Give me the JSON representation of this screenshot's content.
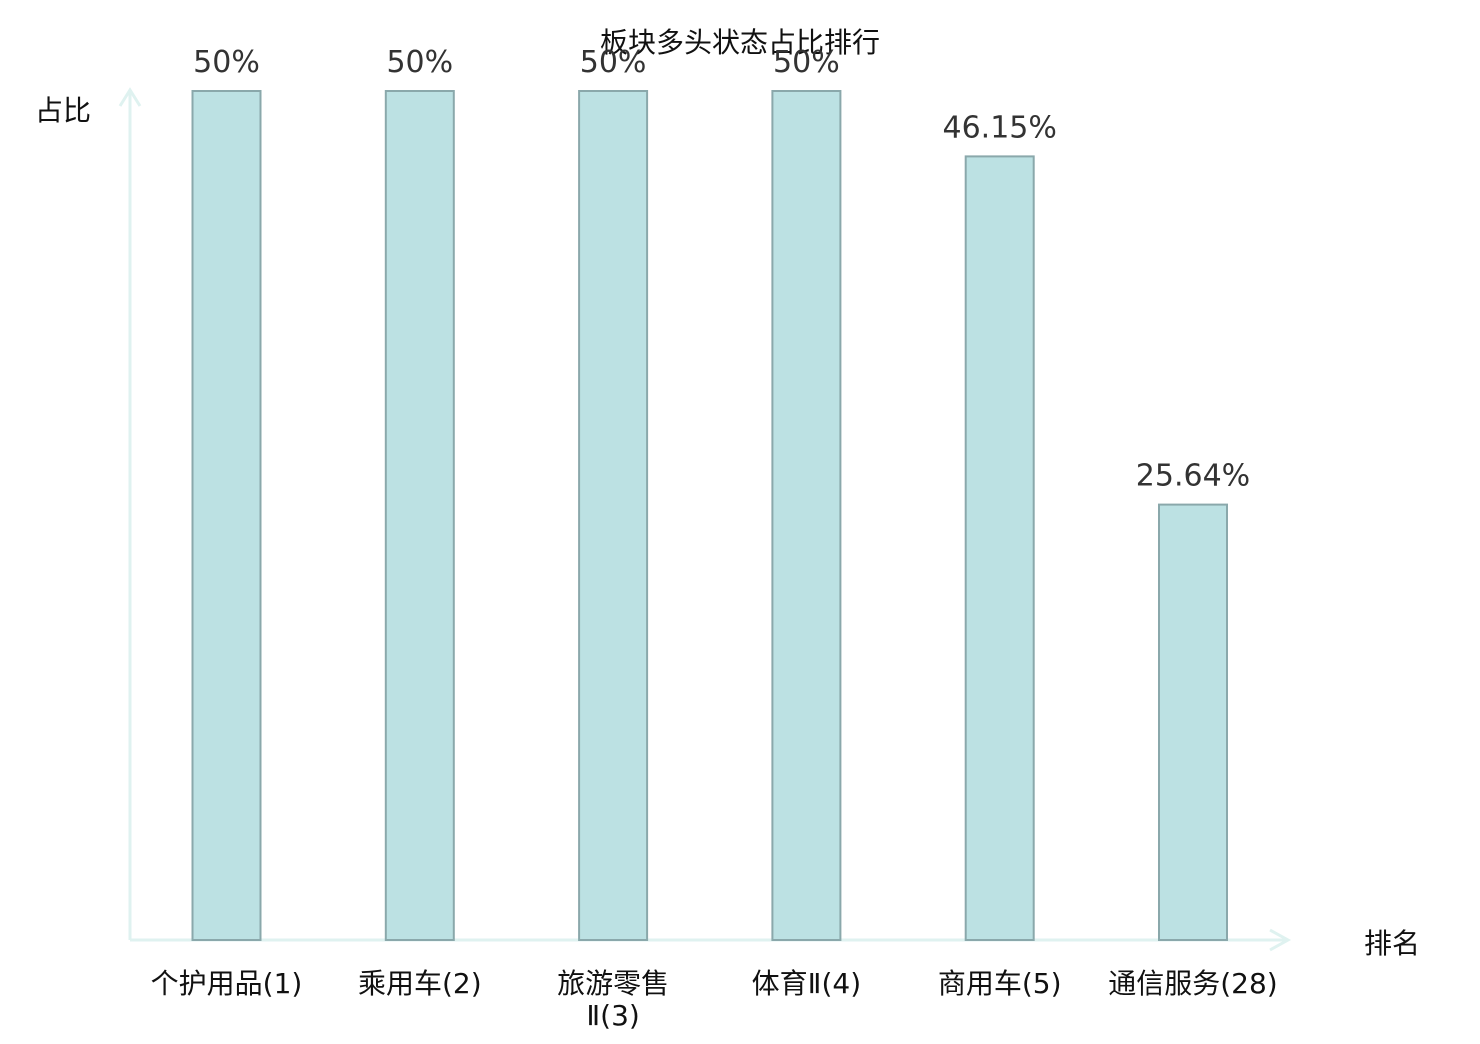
{
  "chart_data": {
    "type": "bar",
    "title": "板块多头状态占比排行",
    "xlabel": "排名",
    "ylabel": "占比",
    "categories": [
      "个护用品(1)",
      "乘用车(2)",
      "旅游零售Ⅱ(3)",
      "体育Ⅱ(4)",
      "商用车(5)",
      "通信服务(28)"
    ],
    "category_lines": [
      [
        "个护用品(1)"
      ],
      [
        "乘用车(2)"
      ],
      [
        "旅游零售",
        "Ⅱ(3)"
      ],
      [
        "体育Ⅱ(4)"
      ],
      [
        "商用车(5)"
      ],
      [
        "通信服务(28)"
      ]
    ],
    "values": [
      50,
      50,
      50,
      50,
      46.15,
      25.64
    ],
    "value_labels": [
      "50%",
      "50%",
      "50%",
      "50%",
      "46.15%",
      "25.64%"
    ],
    "highlight_index": 5,
    "ylim": [
      0,
      50
    ],
    "grid": false,
    "legend": "none",
    "colors": {
      "bar_fill": "#bce1e3",
      "bar_stroke": "#8aa8ab",
      "axis": "#dff2f0",
      "highlight_label": "#e8191a",
      "value_label": "#333333",
      "text": "#111111"
    }
  }
}
